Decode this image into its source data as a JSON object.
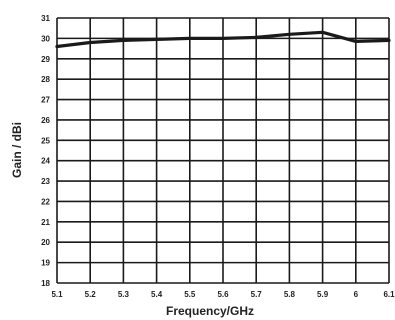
{
  "chart_data": {
    "type": "line",
    "title": "",
    "xlabel": "Frequency/GHz",
    "ylabel": "Gain / dBi",
    "xlim": [
      5.1,
      6.1
    ],
    "ylim": [
      18,
      31
    ],
    "x_ticks": [
      "5.1",
      "5.2",
      "5.3",
      "5.4",
      "5.5",
      "5.6",
      "5.7",
      "5.8",
      "5.9",
      "6",
      "6.1"
    ],
    "y_ticks": [
      "18",
      "19",
      "20",
      "21",
      "22",
      "23",
      "24",
      "25",
      "26",
      "27",
      "28",
      "29",
      "30",
      "31"
    ],
    "grid": true,
    "line_color": "#1a1a1a",
    "grid_color": "#1a1a1a",
    "series": [
      {
        "x": [
          5.1,
          5.2,
          5.3,
          5.4,
          5.5,
          5.6,
          5.7,
          5.8,
          5.9,
          6.0,
          6.1
        ],
        "y": [
          29.6,
          29.8,
          29.9,
          29.95,
          30.0,
          30.0,
          30.05,
          30.2,
          30.3,
          29.85,
          29.9
        ]
      }
    ]
  }
}
